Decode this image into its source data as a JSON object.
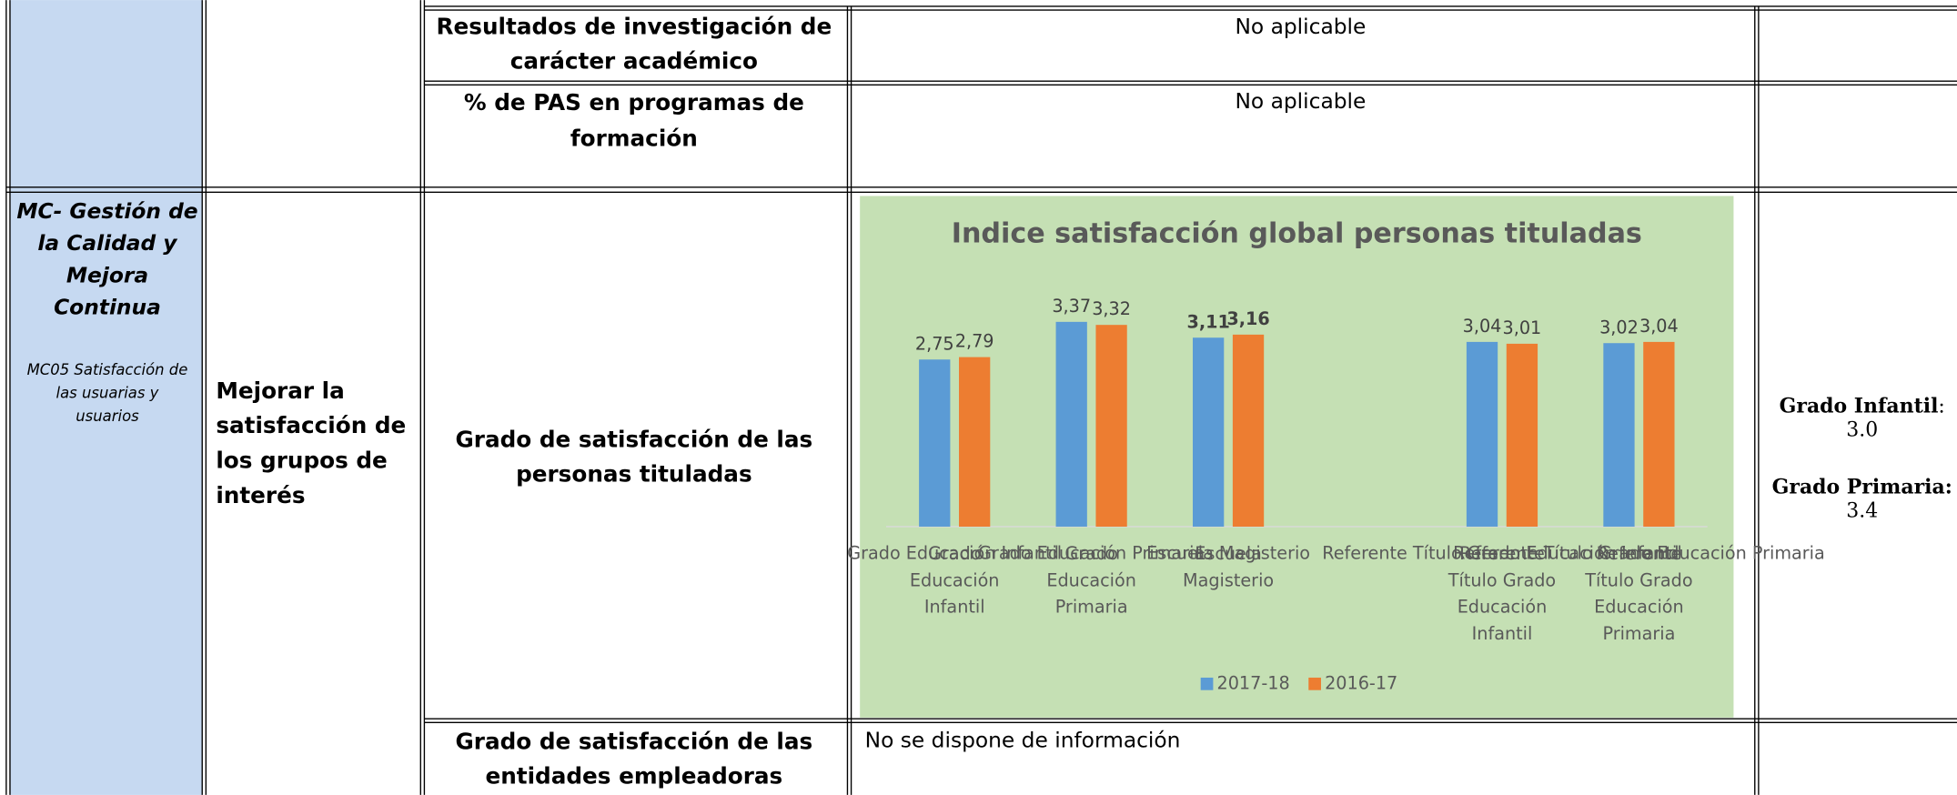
{
  "table": {
    "rows": [
      {
        "indicator": [
          "Resultados de investigación de",
          "carácter académico"
        ],
        "result": "No aplicable"
      },
      {
        "indicator": [
          "% de PAS en programas de",
          "formación"
        ],
        "result": "No aplicable"
      },
      {
        "process": [
          "MC- Gestión de",
          "la Calidad y",
          "Mejora",
          "Continua"
        ],
        "process_detail": [
          "MC05 Satisfacción de",
          "las usuarias y",
          "usuarios"
        ],
        "objective": [
          "Mejorar la",
          "satisfacción de",
          "los grupos de",
          "interés"
        ],
        "indicator": [
          "Grado de satisfacción de las",
          "personas tituladas"
        ],
        "targets": [
          {
            "label": "Grado Infantil",
            "sep": ":",
            "value": "3.0"
          },
          {
            "label": "Grado Primaria:",
            "value": "3.4"
          }
        ]
      },
      {
        "indicator": [
          "Grado de satisfacción de las",
          "entidades empleadoras"
        ],
        "result": "No se dispone de información"
      }
    ]
  },
  "chart_data": {
    "type": "bar",
    "title": "Indice satisfacción global personas tituladas",
    "categories": [
      "Grado Educación Infantil",
      "Grado Educación Primaria",
      "Escuela Magisterio",
      null,
      "Referente Título Grado Educación Infantil",
      "Referente Título Grado Educación Primaria"
    ],
    "series": [
      {
        "name": "2017-18",
        "color": "#5b9bd5",
        "values": [
          2.75,
          3.37,
          3.11,
          null,
          3.04,
          3.02
        ],
        "value_labels": [
          "2,75",
          "3,37",
          "3,11",
          null,
          "3,04",
          "3,02"
        ]
      },
      {
        "name": "2016-17",
        "color": "#ed7d31",
        "values": [
          2.79,
          3.32,
          3.16,
          null,
          3.01,
          3.04
        ],
        "value_labels": [
          "2,79",
          "3,32",
          "3,16",
          null,
          "3,01",
          "3,04"
        ]
      }
    ],
    "ylim": [
      0,
      4
    ],
    "legend": "bottom"
  }
}
